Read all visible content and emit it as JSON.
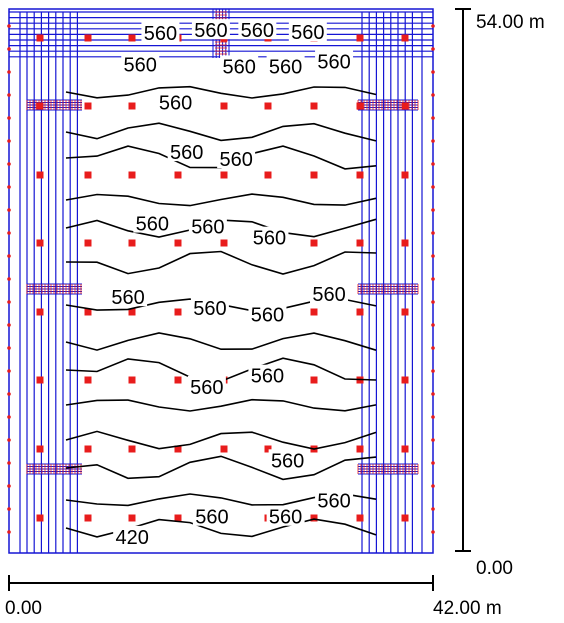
{
  "scale": {
    "horizontal": {
      "start_label": "0.00",
      "end_label": "42.00 m"
    },
    "vertical": {
      "bottom_label": "0.00",
      "top_label": "54.00 m"
    }
  },
  "contour_labels": [
    {
      "text": "560",
      "x": 15,
      "y": 51.5
    },
    {
      "text": "560",
      "x": 20,
      "y": 51.8
    },
    {
      "text": "560",
      "x": 24.6,
      "y": 51.8
    },
    {
      "text": "560",
      "x": 29.6,
      "y": 51.6
    },
    {
      "text": "560",
      "x": 13,
      "y": 48.4
    },
    {
      "text": "560",
      "x": 22.8,
      "y": 48.2
    },
    {
      "text": "560",
      "x": 27.4,
      "y": 48.2
    },
    {
      "text": "560",
      "x": 32.2,
      "y": 48.7
    },
    {
      "text": "560",
      "x": 16.5,
      "y": 44.6
    },
    {
      "text": "560",
      "x": 17.6,
      "y": 39.7
    },
    {
      "text": "560",
      "x": 22.5,
      "y": 39
    },
    {
      "text": "560",
      "x": 14.2,
      "y": 32.6
    },
    {
      "text": "560",
      "x": 19.7,
      "y": 32.3
    },
    {
      "text": "560",
      "x": 25.8,
      "y": 31.2
    },
    {
      "text": "560",
      "x": 11.8,
      "y": 25.3
    },
    {
      "text": "560",
      "x": 19.9,
      "y": 24.2
    },
    {
      "text": "560",
      "x": 25.6,
      "y": 23.6
    },
    {
      "text": "560",
      "x": 31.7,
      "y": 25.6
    },
    {
      "text": "560",
      "x": 19.6,
      "y": 16.4
    },
    {
      "text": "560",
      "x": 25.6,
      "y": 17.5
    },
    {
      "text": "560",
      "x": 27.6,
      "y": 9.1
    },
    {
      "text": "560",
      "x": 32.2,
      "y": 5.1
    },
    {
      "text": "560",
      "x": 20.1,
      "y": 3.5
    },
    {
      "text": "560",
      "x": 27.4,
      "y": 3.5
    },
    {
      "text": "420",
      "x": 12.2,
      "y": 1.5
    }
  ]
}
